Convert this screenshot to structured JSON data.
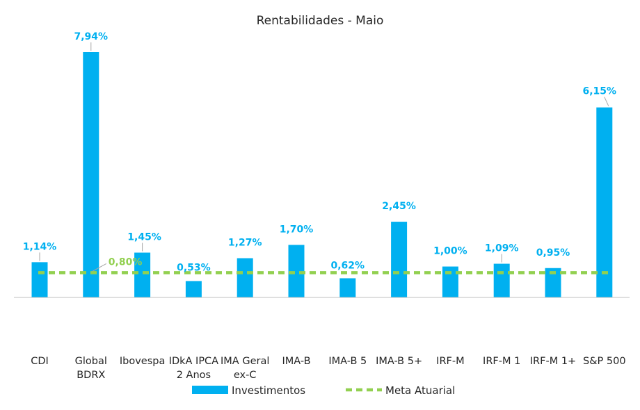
{
  "chart_data": {
    "type": "bar",
    "title": "Rentabilidades - Maio",
    "categories": [
      "CDI",
      "Global BDRX",
      "Ibovespa",
      "IDkA IPCA 2 Anos",
      "IMA Geral ex-C",
      "IMA-B",
      "IMA-B 5",
      "IMA-B 5+",
      "IRF-M",
      "IRF-M 1",
      "IRF-M 1+",
      "S&P 500"
    ],
    "category_lines": [
      [
        "CDI"
      ],
      [
        "Global",
        "BDRX"
      ],
      [
        "Ibovespa"
      ],
      [
        "IDkA IPCA",
        "2 Anos"
      ],
      [
        "IMA Geral",
        "ex-C"
      ],
      [
        "IMA-B"
      ],
      [
        "IMA-B 5"
      ],
      [
        "IMA-B 5+"
      ],
      [
        "IRF-M"
      ],
      [
        "IRF-M 1"
      ],
      [
        "IRF-M 1+"
      ],
      [
        "S&P 500"
      ]
    ],
    "series": [
      {
        "name": "Investimentos",
        "values": [
          1.14,
          7.94,
          1.45,
          0.53,
          1.27,
          1.7,
          0.62,
          2.45,
          1.0,
          1.09,
          0.95,
          6.15
        ],
        "labels": [
          "1,14%",
          "7,94%",
          "1,45%",
          "0,53%",
          "1,27%",
          "1,70%",
          "0,62%",
          "2,45%",
          "1,00%",
          "1,09%",
          "0,95%",
          "6,15%"
        ]
      },
      {
        "name": "Meta Atuarial",
        "value": 0.8,
        "label": "0,80%"
      }
    ],
    "ylim": [
      0,
      8.0
    ],
    "legend": "bottom",
    "colors": {
      "bars": "#00B0F0",
      "meta": "#92D050",
      "axis": "#BFBFBF",
      "text": "#262626"
    }
  }
}
